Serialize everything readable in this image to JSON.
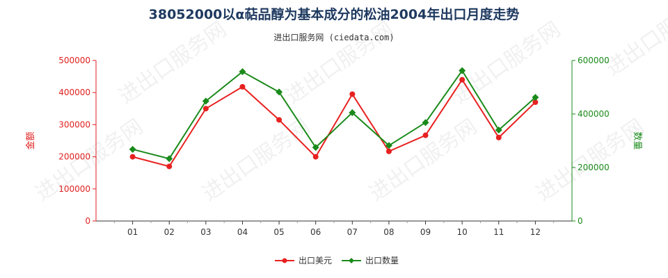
{
  "title": "38052000以α萜品醇为基本成分的松油2004年出口月度走势",
  "subtitle": "进出口服务网 (ciedata.com)",
  "watermark": "进出口服务网",
  "chart_data": {
    "type": "line",
    "categories": [
      "01",
      "02",
      "03",
      "04",
      "05",
      "06",
      "07",
      "08",
      "09",
      "10",
      "11",
      "12"
    ],
    "left_axis": {
      "label": "金额",
      "ticks": [
        "0",
        "100000",
        "200000",
        "300000",
        "400000",
        "500000"
      ],
      "ylim": [
        0,
        500000
      ],
      "color": "#e02020"
    },
    "right_axis": {
      "label": "数量",
      "ticks": [
        "0",
        "200000",
        "400000",
        "600000"
      ],
      "ylim": [
        0,
        600000
      ],
      "color": "#1a8a1a"
    },
    "series": [
      {
        "name": "出口美元",
        "axis": "left",
        "color": "#e82020",
        "marker": "circle",
        "values": [
          200000,
          170000,
          350000,
          418000,
          315000,
          200000,
          395000,
          217000,
          267000,
          440000,
          260000,
          370000
        ]
      },
      {
        "name": "出口数量",
        "axis": "right",
        "color": "#1a8a1a",
        "marker": "diamond",
        "values": [
          268000,
          233000,
          448000,
          558000,
          482000,
          275000,
          405000,
          282000,
          368000,
          562000,
          340000,
          462000
        ]
      }
    ],
    "grid": false,
    "legend_position": "bottom"
  }
}
